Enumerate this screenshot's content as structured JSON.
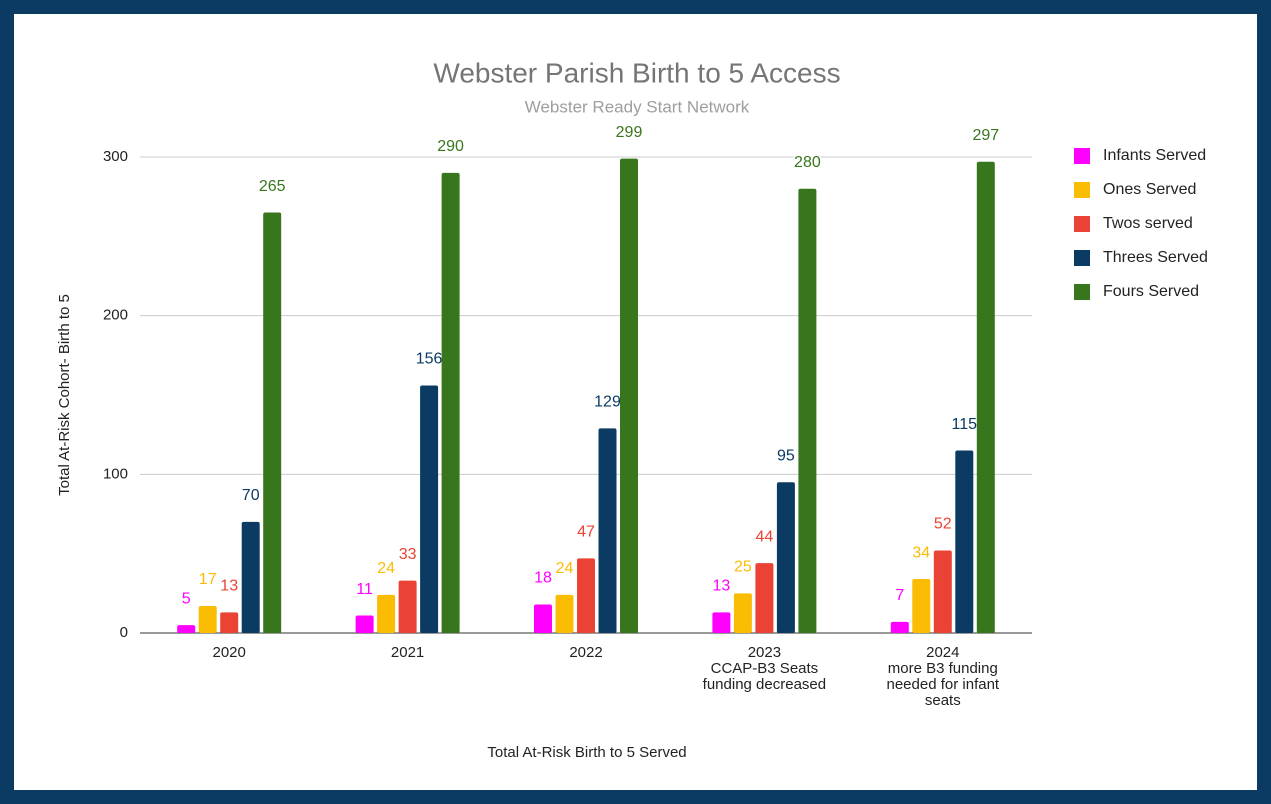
{
  "chart_data": {
    "type": "bar",
    "title": "Webster Parish Birth to 5 Access",
    "subtitle": "Webster Ready Start Network",
    "x_label": "Total At-Risk Birth to 5 Served",
    "y_label": "Total At-Risk Cohort- Birth to 5",
    "categories": [
      "2020",
      "2021",
      "2022",
      "2023\nCCAP-B3 Seats\nfunding decreased",
      "2024\nmore B3 funding\nneeded for infant\nseats"
    ],
    "series": [
      {
        "name": "Infants Served",
        "color": "#ff00ff",
        "values": [
          5,
          11,
          18,
          13,
          7
        ]
      },
      {
        "name": "Ones Served",
        "color": "#fbbc04",
        "values": [
          17,
          24,
          24,
          25,
          34
        ]
      },
      {
        "name": "Twos served",
        "color": "#ea4335",
        "values": [
          13,
          33,
          47,
          44,
          52
        ]
      },
      {
        "name": "Threes Served",
        "color": "#0b3a63",
        "values": [
          70,
          156,
          129,
          95,
          115
        ]
      },
      {
        "name": "Fours Served",
        "color": "#38761d",
        "values": [
          265,
          290,
          299,
          280,
          297
        ]
      }
    ],
    "ylim": [
      0,
      300
    ],
    "yticks": [
      0,
      100,
      200,
      300
    ],
    "grid": true,
    "legend": "right"
  }
}
